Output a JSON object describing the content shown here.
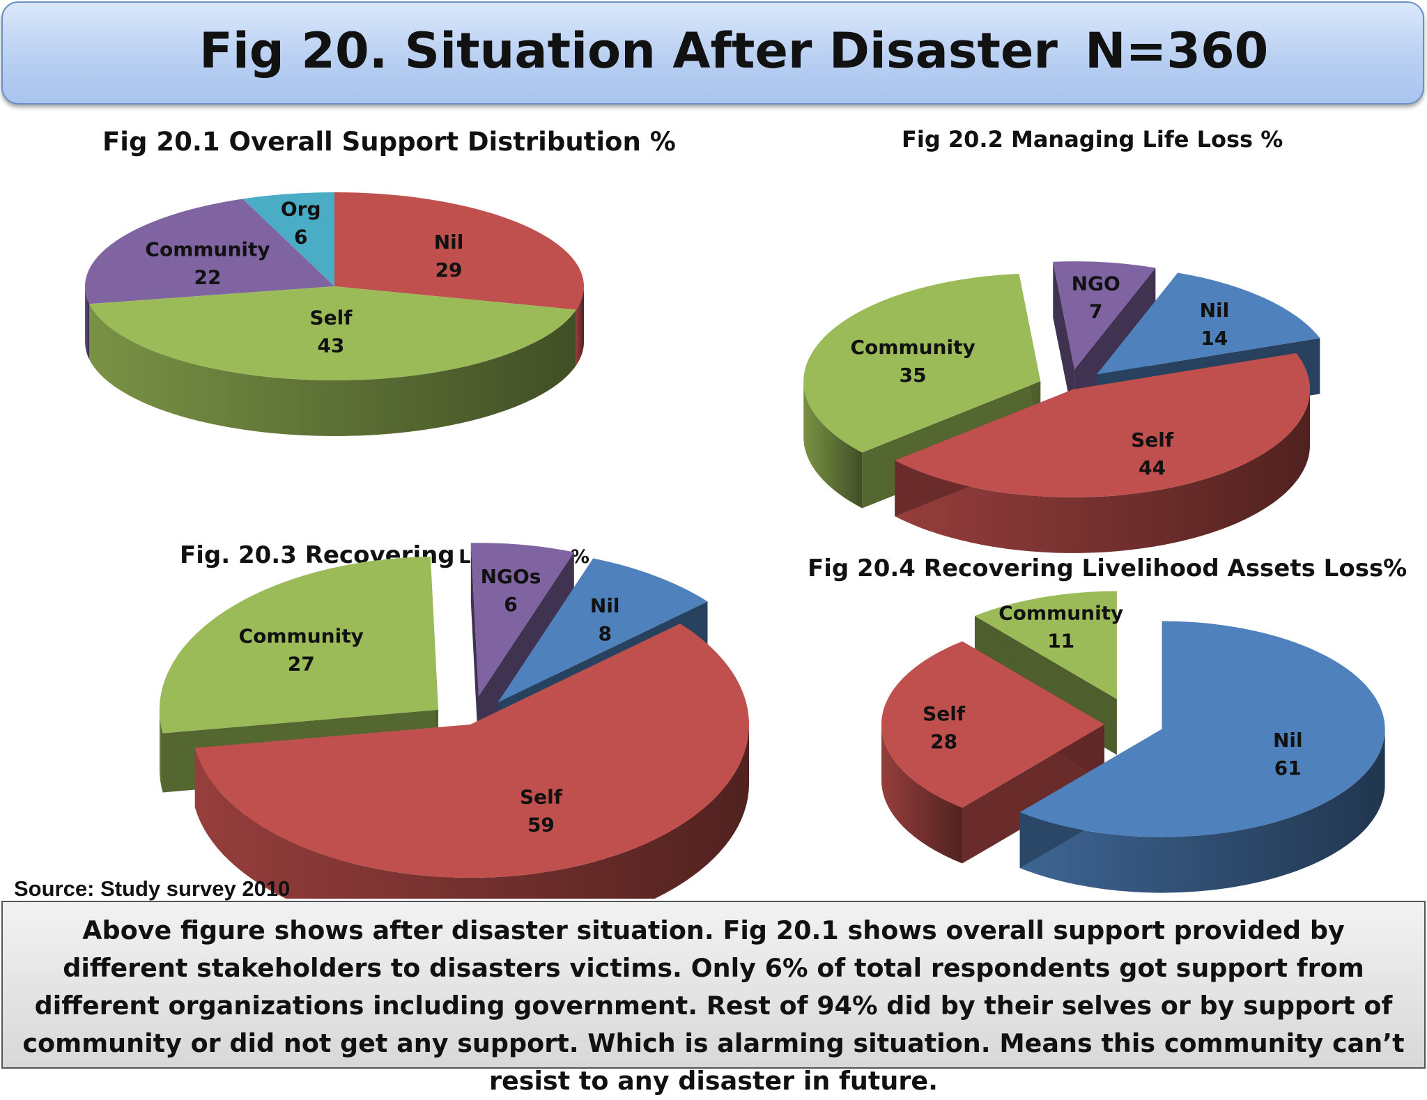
{
  "header": {
    "title": "Fig 20. Situation After Disaster",
    "sample": "N=360"
  },
  "chart_data": [
    {
      "type": "pie",
      "title": "Fig 20.1 Overall Support Distribution %",
      "categories": [
        "Nil",
        "Self",
        "Community",
        "Org"
      ],
      "values": [
        29,
        43,
        22,
        6
      ],
      "colors": [
        "#c0504d",
        "#9bbb59",
        "#8064a2",
        "#4bacc6"
      ],
      "style": "3d"
    },
    {
      "type": "pie",
      "title": "Fig 20.2 Managing Life Loss %",
      "categories": [
        "Nil",
        "Self",
        "Community",
        "NGO"
      ],
      "values": [
        14,
        44,
        35,
        7
      ],
      "colors": [
        "#4f81bd",
        "#c0504d",
        "#9bbb59",
        "#8064a2"
      ],
      "style": "3d-exploded"
    },
    {
      "type": "pie",
      "title_main": "Fig. 20.3 Recovering",
      "title_small": "Land Loss %",
      "categories": [
        "Nil",
        "Self",
        "Community",
        "NGOs"
      ],
      "values": [
        8,
        59,
        27,
        6
      ],
      "colors": [
        "#4f81bd",
        "#c0504d",
        "#9bbb59",
        "#8064a2"
      ],
      "style": "3d-exploded"
    },
    {
      "type": "pie",
      "title": "Fig 20.4 Recovering Livelihood Assets Loss%",
      "categories": [
        "Nil",
        "Self",
        "Community"
      ],
      "values": [
        61,
        28,
        11
      ],
      "colors": [
        "#4f81bd",
        "#c0504d",
        "#9bbb59"
      ],
      "style": "3d-exploded"
    }
  ],
  "source": "Source: Study survey 2010",
  "note": "Above figure shows after disaster situation. Fig 20.1 shows overall support provided by different stakeholders to disasters victims. Only 6% of total respondents got support from different organizations including government. Rest of 94% did by their selves or by support of community or did not get any support. Which is alarming situation. Means this community can’t resist to any disaster in future."
}
